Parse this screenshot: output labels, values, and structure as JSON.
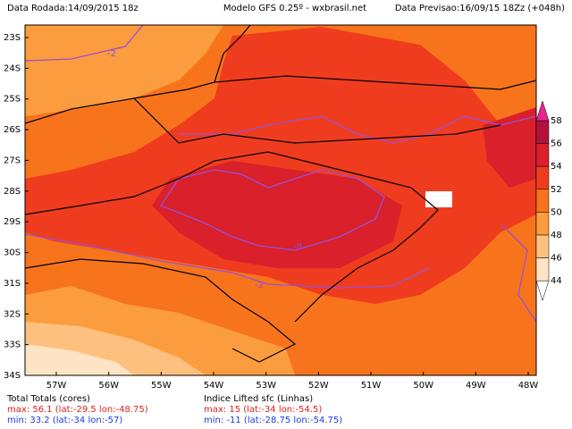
{
  "header": {
    "left": "Data Rodada:14/09/2015 18z",
    "center": "Modelo GFS 0.25º - wxbrasil.net",
    "right": "Data Previsao:16/09/15 18Zz (+048h)"
  },
  "lat_labels": [
    "23S",
    "24S",
    "25S",
    "26S",
    "27S",
    "28S",
    "29S",
    "30S",
    "31S",
    "32S",
    "33S",
    "34S"
  ],
  "lon_labels": [
    "57W",
    "56W",
    "55W",
    "54W",
    "53W",
    "52W",
    "51W",
    "50W",
    "49W",
    "48W"
  ],
  "contour_labels": [
    "-2",
    "-8",
    "-2"
  ],
  "colorbar": {
    "levels": [
      58,
      56,
      54,
      52,
      50,
      48,
      46,
      44
    ],
    "colors": [
      "#e8258f",
      "#b3123c",
      "#d9202b",
      "#f03c1e",
      "#f7741c",
      "#fb9c3e",
      "#fdc07e",
      "#fee3c4",
      "#ffffff"
    ]
  },
  "footer": {
    "left": {
      "title": "Total Totals (cores)",
      "max": "max: 56.1 (lat:-29.5 lon:-48.75)",
      "min": "min: 33.2 (lat:-34 lon:-57)"
    },
    "right": {
      "title": "Indice Lifted sfc (Linhas)",
      "max": "max: 15 (lat:-34 lon:-54.5)",
      "min": "min: -11 (lat:-28.75 lon:-54.75)"
    }
  }
}
